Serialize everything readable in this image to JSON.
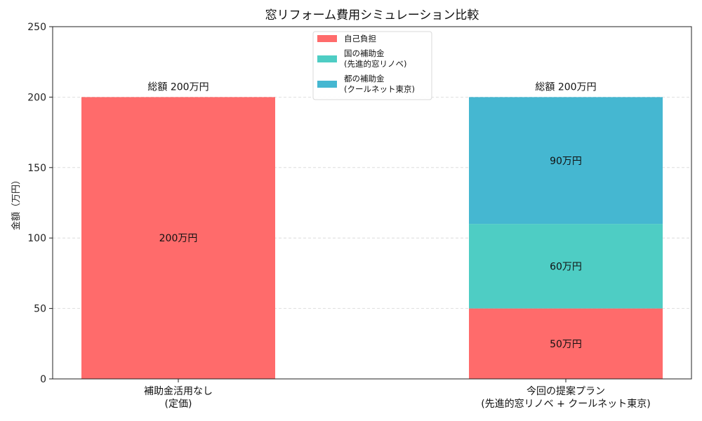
{
  "chart_data": {
    "type": "bar",
    "stacked": true,
    "title": "窓リフォーム費用シミュレーション比較",
    "ylabel": "金額（万円）",
    "xlabel": "",
    "ylim": [
      0,
      250
    ],
    "yticks": [
      0,
      50,
      100,
      150,
      200,
      250
    ],
    "grid": true,
    "legend_position": "top-center",
    "categories": [
      [
        "補助金活用なし",
        "(定価)"
      ],
      [
        "今回の提案プラン",
        "(先進的窓リノベ + クールネット東京)"
      ]
    ],
    "series": [
      {
        "name": [
          "自己負担"
        ],
        "color": "#ff6b6b",
        "values": [
          200,
          50
        ],
        "labels": [
          "200万円",
          "50万円"
        ]
      },
      {
        "name": [
          "国の補助金",
          "(先進的窓リノベ)"
        ],
        "color": "#4ecdc4",
        "values": [
          0,
          60
        ],
        "labels": [
          "",
          "60万円"
        ]
      },
      {
        "name": [
          "都の補助金",
          "(クールネット東京)"
        ],
        "color": "#45b7d1",
        "values": [
          0,
          90
        ],
        "labels": [
          "",
          "90万円"
        ]
      }
    ],
    "totals": [
      "総額 200万円",
      "総額 200万円"
    ]
  }
}
